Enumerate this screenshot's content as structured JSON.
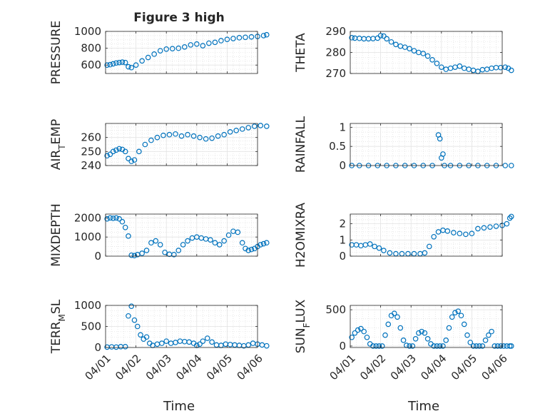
{
  "figure": {
    "title": "Figure 3 high",
    "xlabel": "Time",
    "x_tick_labels": [
      "04/01",
      "04/02",
      "04/03",
      "04/04",
      "04/05",
      "04/06"
    ],
    "marker_color": "#0072BD"
  },
  "chart_data": [
    {
      "type": "scatter",
      "ylabel": "PRESSURE",
      "ylabel_sub": "",
      "ylim": [
        500,
        1000
      ],
      "yticks": [
        600,
        800,
        1000
      ],
      "series": [
        {
          "x": [
            0.05,
            0.15,
            0.25,
            0.35,
            0.45,
            0.55,
            0.65,
            0.75,
            0.85,
            1.0,
            1.2,
            1.4,
            1.6,
            1.8,
            2.0,
            2.2,
            2.4,
            2.6,
            2.8,
            3.0,
            3.2,
            3.4,
            3.6,
            3.8,
            4.0,
            4.2,
            4.4,
            4.6,
            4.8,
            5.0,
            5.2,
            5.3
          ],
          "y": [
            600,
            605,
            615,
            625,
            630,
            635,
            630,
            580,
            570,
            600,
            650,
            690,
            730,
            770,
            790,
            795,
            800,
            815,
            840,
            850,
            830,
            860,
            870,
            890,
            905,
            915,
            925,
            930,
            935,
            940,
            950,
            960
          ]
        }
      ]
    },
    {
      "type": "scatter",
      "ylabel": "THETA",
      "ylabel_sub": "",
      "ylim": [
        270,
        290
      ],
      "yticks": [
        270,
        280,
        290
      ],
      "series": [
        {
          "x": [
            0.05,
            0.15,
            0.3,
            0.45,
            0.6,
            0.75,
            0.9,
            1.0,
            1.1,
            1.2,
            1.35,
            1.5,
            1.65,
            1.8,
            1.95,
            2.1,
            2.25,
            2.4,
            2.55,
            2.7,
            2.85,
            3.0,
            3.15,
            3.3,
            3.45,
            3.6,
            3.75,
            3.9,
            4.05,
            4.2,
            4.35,
            4.5,
            4.65,
            4.8,
            4.95,
            5.1,
            5.2,
            5.3
          ],
          "y": [
            287,
            286.8,
            286.7,
            286.5,
            286.5,
            286.6,
            286.8,
            288,
            287.8,
            286.5,
            285,
            283.8,
            283,
            282.5,
            281.8,
            280.8,
            280,
            279.5,
            278.3,
            276.5,
            274.8,
            273,
            272,
            272.5,
            273,
            273.5,
            272.5,
            272,
            271.5,
            271,
            271.8,
            272,
            272.5,
            272.8,
            272.8,
            273,
            272.5,
            271.5
          ]
        }
      ]
    },
    {
      "type": "scatter",
      "ylabel": "AIR",
      "ylabel_sub": "T",
      "ylabel_suffix": "EMP",
      "ylim": [
        240,
        270
      ],
      "yticks": [
        240,
        250,
        260
      ],
      "series": [
        {
          "x": [
            0.05,
            0.15,
            0.25,
            0.35,
            0.45,
            0.55,
            0.65,
            0.75,
            0.85,
            0.95,
            1.1,
            1.3,
            1.5,
            1.7,
            1.9,
            2.1,
            2.3,
            2.5,
            2.7,
            2.9,
            3.1,
            3.3,
            3.5,
            3.7,
            3.9,
            4.1,
            4.3,
            4.5,
            4.7,
            4.9,
            5.1,
            5.3
          ],
          "y": [
            247,
            248,
            250,
            251,
            252,
            251.5,
            250,
            245,
            243,
            244,
            250,
            255,
            258,
            260,
            261.5,
            262,
            262.5,
            261,
            262,
            261,
            260,
            259,
            259.5,
            261,
            262,
            264,
            265,
            266,
            267,
            268,
            268.5,
            268
          ]
        }
      ]
    },
    {
      "type": "scatter",
      "ylabel": "RAINFALL",
      "ylabel_sub": "",
      "ylim": [
        0,
        1.1
      ],
      "yticks": [
        0,
        0.5,
        1
      ],
      "series": [
        {
          "x": [
            0.05,
            0.3,
            0.6,
            0.9,
            1.2,
            1.5,
            1.8,
            2.1,
            2.4,
            2.7,
            2.9,
            2.95,
            3.0,
            3.05,
            3.1,
            3.3,
            3.6,
            3.9,
            4.2,
            4.5,
            4.8,
            5.1,
            5.3
          ],
          "y": [
            0,
            0,
            0,
            0,
            0,
            0,
            0,
            0,
            0,
            0,
            0.8,
            0.7,
            0.2,
            0.3,
            0,
            0,
            0,
            0,
            0,
            0,
            0,
            0,
            0
          ]
        }
      ]
    },
    {
      "type": "scatter",
      "ylabel": "MIXDEPTH",
      "ylabel_sub": "",
      "ylim": [
        0,
        2200
      ],
      "yticks": [
        0,
        1000,
        2000
      ],
      "series": [
        {
          "x": [
            0.05,
            0.15,
            0.25,
            0.35,
            0.45,
            0.55,
            0.65,
            0.75,
            0.85,
            0.95,
            1.05,
            1.2,
            1.35,
            1.5,
            1.65,
            1.8,
            1.95,
            2.1,
            2.25,
            2.4,
            2.55,
            2.7,
            2.85,
            3.0,
            3.15,
            3.3,
            3.45,
            3.6,
            3.75,
            3.9,
            4.05,
            4.2,
            4.35,
            4.5,
            4.6,
            4.7,
            4.8,
            4.9,
            5.0,
            5.1,
            5.2,
            5.3
          ],
          "y": [
            1950,
            2000,
            1980,
            2000,
            1950,
            1800,
            1500,
            1050,
            50,
            30,
            80,
            150,
            300,
            700,
            800,
            600,
            200,
            100,
            80,
            300,
            600,
            800,
            950,
            1000,
            950,
            900,
            850,
            700,
            600,
            800,
            1100,
            1300,
            1250,
            700,
            400,
            300,
            350,
            400,
            500,
            600,
            650,
            700
          ]
        }
      ]
    },
    {
      "type": "scatter",
      "ylabel": "H2OMIXRA",
      "ylabel_sub": "",
      "ylim": [
        0,
        2.6
      ],
      "yticks": [
        0,
        1,
        2
      ],
      "series": [
        {
          "x": [
            0.05,
            0.2,
            0.35,
            0.5,
            0.65,
            0.8,
            0.95,
            1.1,
            1.3,
            1.5,
            1.7,
            1.9,
            2.1,
            2.3,
            2.45,
            2.6,
            2.75,
            2.9,
            3.05,
            3.2,
            3.4,
            3.6,
            3.8,
            4.0,
            4.2,
            4.4,
            4.6,
            4.8,
            5.0,
            5.15,
            5.25,
            5.3
          ],
          "y": [
            0.7,
            0.7,
            0.65,
            0.7,
            0.75,
            0.6,
            0.5,
            0.35,
            0.2,
            0.15,
            0.15,
            0.15,
            0.15,
            0.15,
            0.2,
            0.6,
            1.2,
            1.5,
            1.6,
            1.55,
            1.45,
            1.4,
            1.35,
            1.4,
            1.7,
            1.75,
            1.8,
            1.85,
            1.9,
            2.0,
            2.35,
            2.45
          ]
        }
      ]
    },
    {
      "type": "scatter",
      "ylabel": "TERR",
      "ylabel_sub": "M",
      "ylabel_suffix": "SL",
      "ylim": [
        0,
        1000
      ],
      "yticks": [
        0,
        500,
        1000
      ],
      "series": [
        {
          "x": [
            0.05,
            0.2,
            0.35,
            0.5,
            0.65,
            0.75,
            0.85,
            0.95,
            1.05,
            1.15,
            1.25,
            1.35,
            1.45,
            1.55,
            1.7,
            1.85,
            2.0,
            2.15,
            2.3,
            2.45,
            2.6,
            2.75,
            2.9,
            3.0,
            3.1,
            3.2,
            3.35,
            3.5,
            3.65,
            3.8,
            3.95,
            4.1,
            4.25,
            4.4,
            4.55,
            4.7,
            4.85,
            5.0,
            5.15,
            5.3
          ],
          "y": [
            10,
            15,
            10,
            20,
            20,
            750,
            980,
            650,
            500,
            300,
            200,
            250,
            100,
            50,
            80,
            100,
            150,
            100,
            120,
            150,
            140,
            130,
            100,
            50,
            80,
            150,
            220,
            130,
            60,
            50,
            80,
            70,
            60,
            50,
            40,
            60,
            100,
            80,
            60,
            40
          ]
        }
      ]
    },
    {
      "type": "scatter",
      "ylabel": "SUN",
      "ylabel_sub": "F",
      "ylabel_suffix": "LUX",
      "ylim": [
        -20,
        560
      ],
      "yticks": [
        0,
        500
      ],
      "series": [
        {
          "x": [
            0.05,
            0.15,
            0.25,
            0.35,
            0.45,
            0.55,
            0.65,
            0.75,
            0.85,
            0.95,
            1.05,
            1.15,
            1.25,
            1.35,
            1.45,
            1.55,
            1.65,
            1.75,
            1.85,
            1.95,
            2.05,
            2.15,
            2.25,
            2.35,
            2.45,
            2.55,
            2.65,
            2.75,
            2.85,
            2.95,
            3.05,
            3.15,
            3.25,
            3.35,
            3.45,
            3.55,
            3.65,
            3.75,
            3.85,
            3.95,
            4.05,
            4.15,
            4.25,
            4.35,
            4.45,
            4.55,
            4.65,
            4.75,
            4.85,
            4.95,
            5.05,
            5.15,
            5.25,
            5.3
          ],
          "y": [
            120,
            180,
            220,
            240,
            200,
            120,
            30,
            0,
            0,
            0,
            0,
            150,
            300,
            420,
            450,
            400,
            250,
            80,
            10,
            0,
            0,
            100,
            180,
            200,
            180,
            100,
            30,
            0,
            0,
            0,
            0,
            80,
            250,
            400,
            460,
            480,
            420,
            300,
            150,
            50,
            0,
            0,
            0,
            0,
            80,
            150,
            200,
            0,
            0,
            0,
            0,
            0,
            0,
            0
          ]
        }
      ]
    }
  ]
}
